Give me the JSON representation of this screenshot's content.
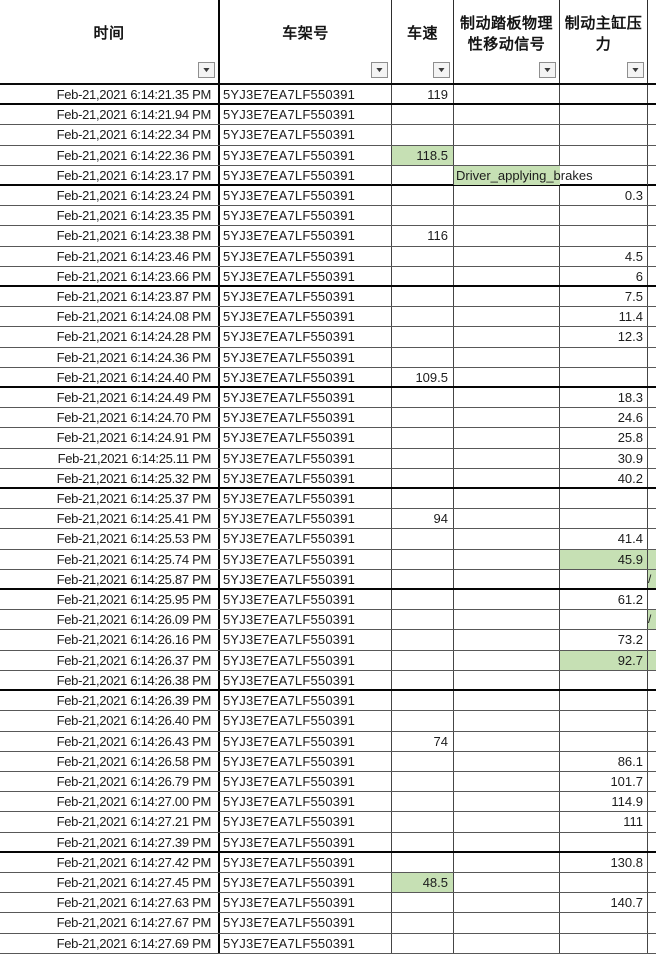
{
  "table": {
    "filter_icon": "▼",
    "colors": {
      "highlight_green": "#c6e0b4",
      "grid_line": "#585858",
      "thick_line": "#050505",
      "text": "#1c1c1c"
    },
    "columns": [
      {
        "label": "时间"
      },
      {
        "label": "车架号"
      },
      {
        "label": "车速"
      },
      {
        "label": "制动踏板物理\n性移动信号"
      },
      {
        "label": "制动主缸压\n力"
      },
      {
        "label": ""
      }
    ],
    "rows": [
      {
        "time": "Feb-21,2021 6:14:21.35 PM",
        "vin": "5YJ3E7EA7LF550391",
        "speed": "119",
        "signal": "",
        "pressure": "",
        "hl": {},
        "edge_mark": "",
        "thick_bottom": true,
        "signal_overflow": false
      },
      {
        "time": "Feb-21,2021 6:14:21.94 PM",
        "vin": "5YJ3E7EA7LF550391",
        "speed": "",
        "signal": "",
        "pressure": "",
        "hl": {},
        "edge_mark": "",
        "thick_bottom": false,
        "signal_overflow": false
      },
      {
        "time": "Feb-21,2021 6:14:22.34 PM",
        "vin": "5YJ3E7EA7LF550391",
        "speed": "",
        "signal": "",
        "pressure": "",
        "hl": {},
        "edge_mark": "",
        "thick_bottom": false,
        "signal_overflow": false
      },
      {
        "time": "Feb-21,2021 6:14:22.36 PM",
        "vin": "5YJ3E7EA7LF550391",
        "speed": "118.5",
        "signal": "",
        "pressure": "",
        "hl": {
          "speed": true
        },
        "edge_mark": "",
        "thick_bottom": false,
        "signal_overflow": false
      },
      {
        "time": "Feb-21,2021 6:14:23.17 PM",
        "vin": "5YJ3E7EA7LF550391",
        "speed": "",
        "signal": "Driver_applying_brakes",
        "pressure": "",
        "hl": {
          "signal": true
        },
        "edge_mark": "",
        "thick_bottom": true,
        "signal_overflow": true
      },
      {
        "time": "Feb-21,2021 6:14:23.24 PM",
        "vin": "5YJ3E7EA7LF550391",
        "speed": "",
        "signal": "",
        "pressure": "0.3",
        "hl": {},
        "edge_mark": "",
        "thick_bottom": false,
        "signal_overflow": false
      },
      {
        "time": "Feb-21,2021 6:14:23.35 PM",
        "vin": "5YJ3E7EA7LF550391",
        "speed": "",
        "signal": "",
        "pressure": "",
        "hl": {},
        "edge_mark": "",
        "thick_bottom": false,
        "signal_overflow": false
      },
      {
        "time": "Feb-21,2021 6:14:23.38 PM",
        "vin": "5YJ3E7EA7LF550391",
        "speed": "116",
        "signal": "",
        "pressure": "",
        "hl": {},
        "edge_mark": "",
        "thick_bottom": false,
        "signal_overflow": false
      },
      {
        "time": "Feb-21,2021 6:14:23.46 PM",
        "vin": "5YJ3E7EA7LF550391",
        "speed": "",
        "signal": "",
        "pressure": "4.5",
        "hl": {},
        "edge_mark": "",
        "thick_bottom": false,
        "signal_overflow": false
      },
      {
        "time": "Feb-21,2021 6:14:23.66 PM",
        "vin": "5YJ3E7EA7LF550391",
        "speed": "",
        "signal": "",
        "pressure": "6",
        "hl": {},
        "edge_mark": "",
        "thick_bottom": true,
        "signal_overflow": false
      },
      {
        "time": "Feb-21,2021 6:14:23.87 PM",
        "vin": "5YJ3E7EA7LF550391",
        "speed": "",
        "signal": "",
        "pressure": "7.5",
        "hl": {},
        "edge_mark": "",
        "thick_bottom": false,
        "signal_overflow": false
      },
      {
        "time": "Feb-21,2021 6:14:24.08 PM",
        "vin": "5YJ3E7EA7LF550391",
        "speed": "",
        "signal": "",
        "pressure": "11.4",
        "hl": {},
        "edge_mark": "",
        "thick_bottom": false,
        "signal_overflow": false
      },
      {
        "time": "Feb-21,2021 6:14:24.28 PM",
        "vin": "5YJ3E7EA7LF550391",
        "speed": "",
        "signal": "",
        "pressure": "12.3",
        "hl": {},
        "edge_mark": "",
        "thick_bottom": false,
        "signal_overflow": false
      },
      {
        "time": "Feb-21,2021 6:14:24.36 PM",
        "vin": "5YJ3E7EA7LF550391",
        "speed": "",
        "signal": "",
        "pressure": "",
        "hl": {},
        "edge_mark": "",
        "thick_bottom": false,
        "signal_overflow": false
      },
      {
        "time": "Feb-21,2021 6:14:24.40 PM",
        "vin": "5YJ3E7EA7LF550391",
        "speed": "109.5",
        "signal": "",
        "pressure": "",
        "hl": {},
        "edge_mark": "",
        "thick_bottom": true,
        "signal_overflow": false
      },
      {
        "time": "Feb-21,2021 6:14:24.49 PM",
        "vin": "5YJ3E7EA7LF550391",
        "speed": "",
        "signal": "",
        "pressure": "18.3",
        "hl": {},
        "edge_mark": "",
        "thick_bottom": false,
        "signal_overflow": false
      },
      {
        "time": "Feb-21,2021 6:14:24.70 PM",
        "vin": "5YJ3E7EA7LF550391",
        "speed": "",
        "signal": "",
        "pressure": "24.6",
        "hl": {},
        "edge_mark": "",
        "thick_bottom": false,
        "signal_overflow": false
      },
      {
        "time": "Feb-21,2021 6:14:24.91 PM",
        "vin": "5YJ3E7EA7LF550391",
        "speed": "",
        "signal": "",
        "pressure": "25.8",
        "hl": {},
        "edge_mark": "",
        "thick_bottom": false,
        "signal_overflow": false
      },
      {
        "time": "Feb-21,2021 6:14:25.11 PM",
        "vin": "5YJ3E7EA7LF550391",
        "speed": "",
        "signal": "",
        "pressure": "30.9",
        "hl": {},
        "edge_mark": "",
        "thick_bottom": false,
        "signal_overflow": false
      },
      {
        "time": "Feb-21,2021 6:14:25.32 PM",
        "vin": "5YJ3E7EA7LF550391",
        "speed": "",
        "signal": "",
        "pressure": "40.2",
        "hl": {},
        "edge_mark": "",
        "thick_bottom": true,
        "signal_overflow": false
      },
      {
        "time": "Feb-21,2021 6:14:25.37 PM",
        "vin": "5YJ3E7EA7LF550391",
        "speed": "",
        "signal": "",
        "pressure": "",
        "hl": {},
        "edge_mark": "",
        "thick_bottom": false,
        "signal_overflow": false
      },
      {
        "time": "Feb-21,2021 6:14:25.41 PM",
        "vin": "5YJ3E7EA7LF550391",
        "speed": "94",
        "signal": "",
        "pressure": "",
        "hl": {},
        "edge_mark": "",
        "thick_bottom": false,
        "signal_overflow": false
      },
      {
        "time": "Feb-21,2021 6:14:25.53 PM",
        "vin": "5YJ3E7EA7LF550391",
        "speed": "",
        "signal": "",
        "pressure": "41.4",
        "hl": {},
        "edge_mark": "",
        "thick_bottom": false,
        "signal_overflow": false
      },
      {
        "time": "Feb-21,2021 6:14:25.74 PM",
        "vin": "5YJ3E7EA7LF550391",
        "speed": "",
        "signal": "",
        "pressure": "45.9",
        "hl": {
          "pressure": true,
          "edge": true
        },
        "edge_mark": "",
        "thick_bottom": false,
        "signal_overflow": false
      },
      {
        "time": "Feb-21,2021 6:14:25.87 PM",
        "vin": "5YJ3E7EA7LF550391",
        "speed": "",
        "signal": "",
        "pressure": "",
        "hl": {
          "edge": true
        },
        "edge_mark": "/",
        "thick_bottom": true,
        "signal_overflow": false
      },
      {
        "time": "Feb-21,2021 6:14:25.95 PM",
        "vin": "5YJ3E7EA7LF550391",
        "speed": "",
        "signal": "",
        "pressure": "61.2",
        "hl": {},
        "edge_mark": "",
        "thick_bottom": false,
        "signal_overflow": false
      },
      {
        "time": "Feb-21,2021 6:14:26.09 PM",
        "vin": "5YJ3E7EA7LF550391",
        "speed": "",
        "signal": "",
        "pressure": "",
        "hl": {
          "edge": true
        },
        "edge_mark": "/",
        "thick_bottom": false,
        "signal_overflow": false
      },
      {
        "time": "Feb-21,2021 6:14:26.16 PM",
        "vin": "5YJ3E7EA7LF550391",
        "speed": "",
        "signal": "",
        "pressure": "73.2",
        "hl": {},
        "edge_mark": "",
        "thick_bottom": false,
        "signal_overflow": false
      },
      {
        "time": "Feb-21,2021 6:14:26.37 PM",
        "vin": "5YJ3E7EA7LF550391",
        "speed": "",
        "signal": "",
        "pressure": "92.7",
        "hl": {
          "pressure": true,
          "edge": true
        },
        "edge_mark": "",
        "thick_bottom": false,
        "signal_overflow": false
      },
      {
        "time": "Feb-21,2021 6:14:26.38 PM",
        "vin": "5YJ3E7EA7LF550391",
        "speed": "",
        "signal": "",
        "pressure": "",
        "hl": {},
        "edge_mark": "",
        "thick_bottom": true,
        "signal_overflow": false
      },
      {
        "time": "Feb-21,2021 6:14:26.39 PM",
        "vin": "5YJ3E7EA7LF550391",
        "speed": "",
        "signal": "",
        "pressure": "",
        "hl": {},
        "edge_mark": "",
        "thick_bottom": false,
        "signal_overflow": false
      },
      {
        "time": "Feb-21,2021 6:14:26.40 PM",
        "vin": "5YJ3E7EA7LF550391",
        "speed": "",
        "signal": "",
        "pressure": "",
        "hl": {},
        "edge_mark": "",
        "thick_bottom": false,
        "signal_overflow": false
      },
      {
        "time": "Feb-21,2021 6:14:26.43 PM",
        "vin": "5YJ3E7EA7LF550391",
        "speed": "74",
        "signal": "",
        "pressure": "",
        "hl": {},
        "edge_mark": "",
        "thick_bottom": false,
        "signal_overflow": false
      },
      {
        "time": "Feb-21,2021 6:14:26.58 PM",
        "vin": "5YJ3E7EA7LF550391",
        "speed": "",
        "signal": "",
        "pressure": "86.1",
        "hl": {},
        "edge_mark": "",
        "thick_bottom": false,
        "signal_overflow": false
      },
      {
        "time": "Feb-21,2021 6:14:26.79 PM",
        "vin": "5YJ3E7EA7LF550391",
        "speed": "",
        "signal": "",
        "pressure": "101.7",
        "hl": {},
        "edge_mark": "",
        "thick_bottom": false,
        "signal_overflow": false
      },
      {
        "time": "Feb-21,2021 6:14:27.00 PM",
        "vin": "5YJ3E7EA7LF550391",
        "speed": "",
        "signal": "",
        "pressure": "114.9",
        "hl": {},
        "edge_mark": "",
        "thick_bottom": false,
        "signal_overflow": false
      },
      {
        "time": "Feb-21,2021 6:14:27.21 PM",
        "vin": "5YJ3E7EA7LF550391",
        "speed": "",
        "signal": "",
        "pressure": "111",
        "hl": {},
        "edge_mark": "",
        "thick_bottom": false,
        "signal_overflow": false
      },
      {
        "time": "Feb-21,2021 6:14:27.39 PM",
        "vin": "5YJ3E7EA7LF550391",
        "speed": "",
        "signal": "",
        "pressure": "",
        "hl": {},
        "edge_mark": "",
        "thick_bottom": true,
        "signal_overflow": false
      },
      {
        "time": "Feb-21,2021 6:14:27.42 PM",
        "vin": "5YJ3E7EA7LF550391",
        "speed": "",
        "signal": "",
        "pressure": "130.8",
        "hl": {},
        "edge_mark": "",
        "thick_bottom": false,
        "signal_overflow": false
      },
      {
        "time": "Feb-21,2021 6:14:27.45 PM",
        "vin": "5YJ3E7EA7LF550391",
        "speed": "48.5",
        "signal": "",
        "pressure": "",
        "hl": {
          "speed": true
        },
        "edge_mark": "",
        "thick_bottom": false,
        "signal_overflow": false
      },
      {
        "time": "Feb-21,2021 6:14:27.63 PM",
        "vin": "5YJ3E7EA7LF550391",
        "speed": "",
        "signal": "",
        "pressure": "140.7",
        "hl": {},
        "edge_mark": "",
        "thick_bottom": false,
        "signal_overflow": false
      },
      {
        "time": "Feb-21,2021 6:14:27.67 PM",
        "vin": "5YJ3E7EA7LF550391",
        "speed": "",
        "signal": "",
        "pressure": "",
        "hl": {},
        "edge_mark": "",
        "thick_bottom": false,
        "signal_overflow": false
      },
      {
        "time": "Feb-21,2021 6:14:27.69 PM",
        "vin": "5YJ3E7EA7LF550391",
        "speed": "",
        "signal": "",
        "pressure": "",
        "hl": {},
        "edge_mark": "",
        "thick_bottom": false,
        "signal_overflow": false
      }
    ]
  }
}
